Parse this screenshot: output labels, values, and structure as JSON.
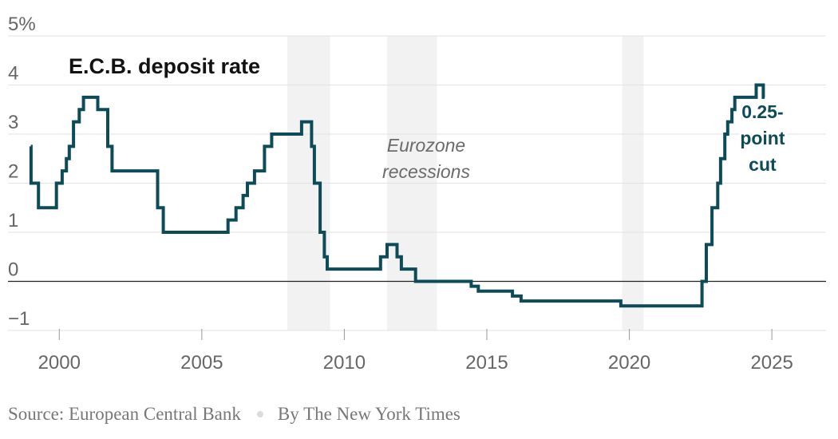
{
  "chart_data": {
    "type": "line",
    "title": "E.C.B. deposit rate",
    "xlabel": "",
    "ylabel": "",
    "xlim": [
      1998.2,
      2026.9
    ],
    "ylim": [
      -1,
      5
    ],
    "x_ticks": [
      {
        "value": 2000,
        "label": "2000"
      },
      {
        "value": 2005,
        "label": "2005"
      },
      {
        "value": 2010,
        "label": "2010"
      },
      {
        "value": 2015,
        "label": "2015"
      },
      {
        "value": 2020,
        "label": "2020"
      },
      {
        "value": 2025,
        "label": "2025"
      }
    ],
    "y_ticks": [
      {
        "value": 5,
        "label": "5%"
      },
      {
        "value": 4,
        "label": "4"
      },
      {
        "value": 3,
        "label": "3"
      },
      {
        "value": 2,
        "label": "2"
      },
      {
        "value": 1,
        "label": "1"
      },
      {
        "value": 0,
        "label": "0"
      },
      {
        "value": -1,
        "label": "−1"
      }
    ],
    "grid": true,
    "recessions": {
      "label": "Eurozone recessions",
      "label_lines": [
        "Eurozone",
        "recessions"
      ],
      "periods": [
        [
          2008.0,
          2009.5
        ],
        [
          2011.5,
          2013.25
        ],
        [
          2019.75,
          2020.5
        ]
      ]
    },
    "annotation": {
      "lines": [
        "0.25-",
        "point",
        "cut"
      ],
      "x": 2024.7,
      "y": 3.75
    },
    "series": [
      {
        "color": "#0d4b59",
        "interpolation": "step-after",
        "x": [
          1999.0,
          1999.01,
          1999.27,
          1999.9,
          2000.1,
          2000.25,
          2000.35,
          2000.5,
          2000.7,
          2000.85,
          2001.35,
          2001.7,
          2001.85,
          2003.45,
          2003.65,
          2005.92,
          2006.2,
          2006.45,
          2006.6,
          2006.85,
          2007.2,
          2007.45,
          2008.5,
          2008.85,
          2008.95,
          2009.15,
          2009.3,
          2009.4,
          2011.27,
          2011.5,
          2011.85,
          2012.0,
          2012.5,
          2014.45,
          2014.7,
          2015.9,
          2016.2,
          2019.7,
          2022.55,
          2022.7,
          2022.9,
          2023.1,
          2023.2,
          2023.35,
          2023.45,
          2023.6,
          2023.7,
          2024.45,
          2024.7
        ],
        "y": [
          2.75,
          2.0,
          1.5,
          2.0,
          2.25,
          2.5,
          2.75,
          3.25,
          3.5,
          3.75,
          3.5,
          2.75,
          2.25,
          1.5,
          1.0,
          1.25,
          1.5,
          1.75,
          2.0,
          2.25,
          2.75,
          3.0,
          3.25,
          2.75,
          2.0,
          1.0,
          0.5,
          0.25,
          0.5,
          0.75,
          0.5,
          0.25,
          0.0,
          -0.1,
          -0.2,
          -0.3,
          -0.4,
          -0.5,
          0.0,
          0.75,
          1.5,
          2.0,
          2.5,
          3.0,
          3.25,
          3.5,
          3.75,
          4.0,
          3.75
        ]
      }
    ],
    "x_end": 2024.75
  },
  "footer": {
    "source": "Source: European Central Bank",
    "byline": "By The New York Times"
  }
}
